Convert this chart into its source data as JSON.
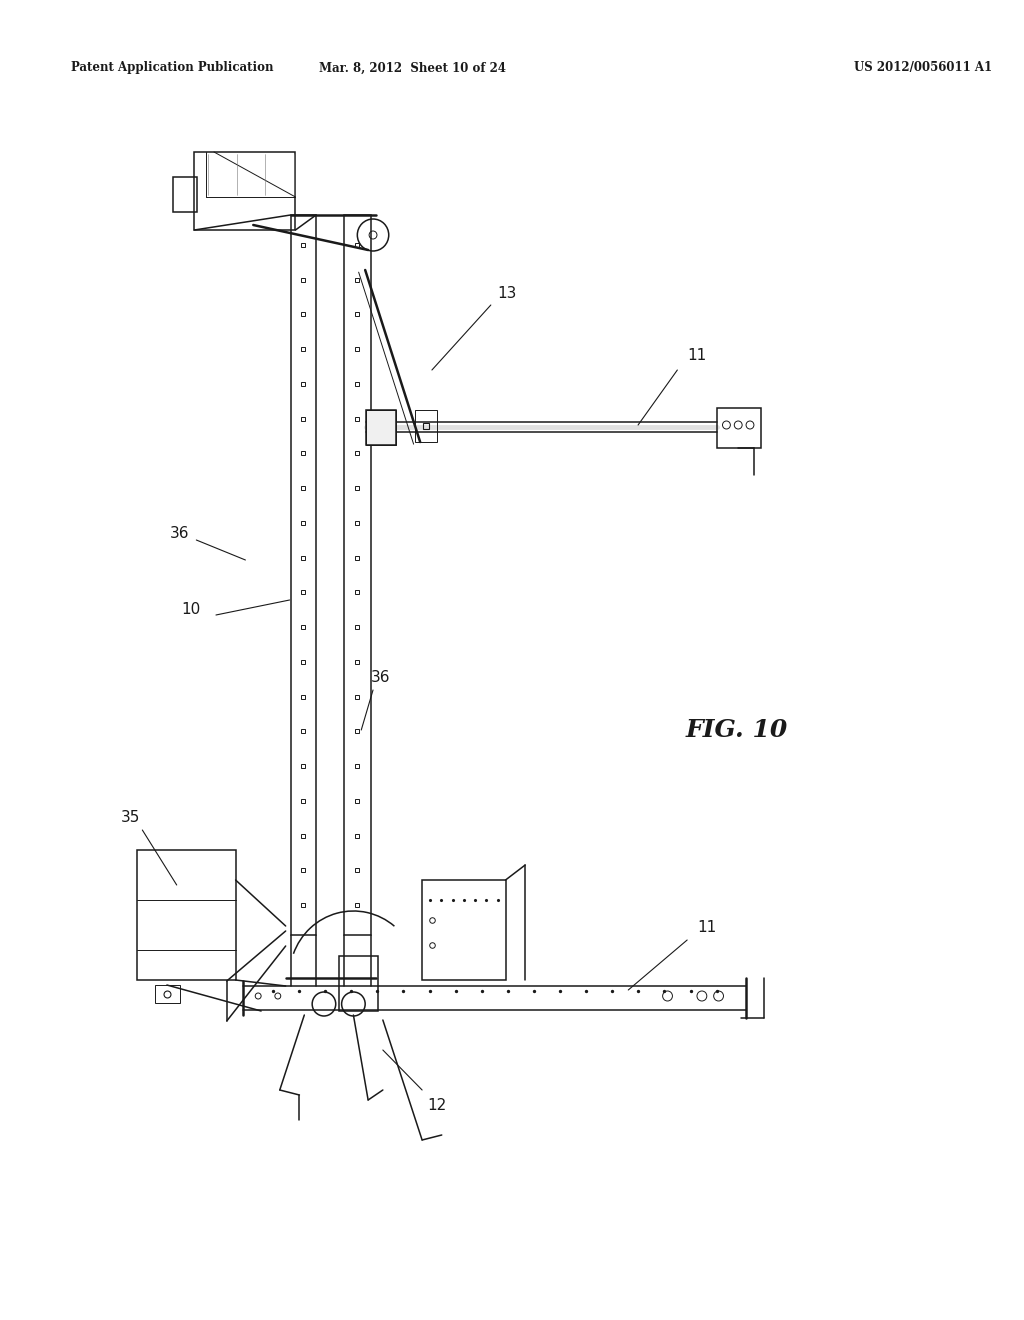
{
  "bg_color": "#ffffff",
  "header_left": "Patent Application Publication",
  "header_mid": "Mar. 8, 2012  Sheet 10 of 24",
  "header_right": "US 2012/0056011 A1",
  "fig_label": "FIG. 10",
  "line_color": "#1a1a1a",
  "lw_thin": 0.7,
  "lw_med": 1.1,
  "lw_thick": 1.8,
  "lw_heavy": 2.5
}
